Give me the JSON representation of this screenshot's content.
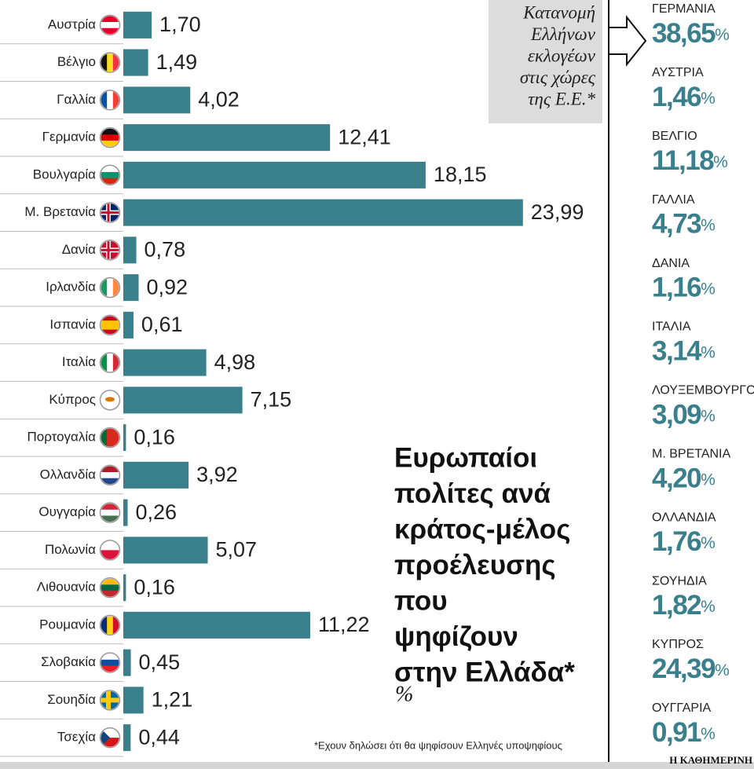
{
  "chart_data": [
    {
      "type": "bar",
      "title_lines": [
        "Ευρωπαίοι",
        "πολίτες ανά",
        "κράτος-μέλος",
        "προέλευσης",
        "που",
        "ψηφίζουν",
        "στην Ελλάδα*"
      ],
      "subtitle": "%",
      "categories": [
        "Αυστρία",
        "Βέλγιο",
        "Γαλλία",
        "Γερμανία",
        "Βουλγαρία",
        "Μ. Βρετανία",
        "Δανία",
        "Ιρλανδία",
        "Ισπανία",
        "Ιταλία",
        "Κύπρος",
        "Πορτογαλία",
        "Ολλανδία",
        "Ουγγαρία",
        "Πολωνία",
        "Λιθουανία",
        "Ρουμανία",
        "Σλοβακία",
        "Σουηδία",
        "Τσεχία"
      ],
      "values": [
        1.7,
        1.49,
        4.02,
        12.41,
        18.15,
        23.99,
        0.78,
        0.92,
        0.61,
        4.98,
        7.15,
        0.16,
        3.92,
        0.26,
        5.07,
        0.16,
        11.22,
        0.45,
        1.21,
        0.44
      ],
      "value_labels": [
        "1,70",
        "1,49",
        "4,02",
        "12,41",
        "18,15",
        "23,99",
        "0,78",
        "0,92",
        "0,61",
        "4,98",
        "7,15",
        "0,16",
        "3,92",
        "0,26",
        "5,07",
        "0,16",
        "11,22",
        "0,45",
        "1,21",
        "0,44"
      ],
      "color": "#3a7f8c",
      "xlim": [
        0,
        24
      ],
      "footnote": "*Εχουν δηλώσει ότι θα ψηφίσουν Ελληνές υποψηφίους",
      "source": "Η ΚΑΘΗΜΕΡΙΝΗ"
    },
    {
      "type": "list",
      "title_lines": [
        "Κατανομή",
        "Ελλήνων",
        "εκλογέων",
        "στις χώρες",
        "της Ε.Ε.*"
      ],
      "unit": "%",
      "color": "#3a7f8c",
      "categories": [
        "ΓΕΡΜΑΝΙΑ",
        "ΑΥΣΤΡΙΑ",
        "ΒΕΛΓΙΟ",
        "ΓΑΛΛΙΑ",
        "ΔΑΝΙΑ",
        "ΙΤΑΛΙΑ",
        "ΛΟΥΞΕΜΒΟΥΡΓΟ",
        "Μ. ΒΡΕΤΑΝΙΑ",
        "ΟΛΛΑΝΔΙΑ",
        "ΣΟΥΗΔΙΑ",
        "ΚΥΠΡΟΣ",
        "ΟΥΓΓΑΡΙΑ"
      ],
      "values": [
        38.65,
        1.46,
        11.18,
        4.73,
        1.16,
        3.14,
        3.09,
        4.2,
        1.76,
        1.82,
        24.39,
        0.91
      ],
      "value_labels": [
        "38,65",
        "1,46",
        "11,18",
        "4,73",
        "1,16",
        "3,14",
        "3,09",
        "4,20",
        "1,76",
        "1,82",
        "24,39",
        "0,91"
      ]
    }
  ]
}
